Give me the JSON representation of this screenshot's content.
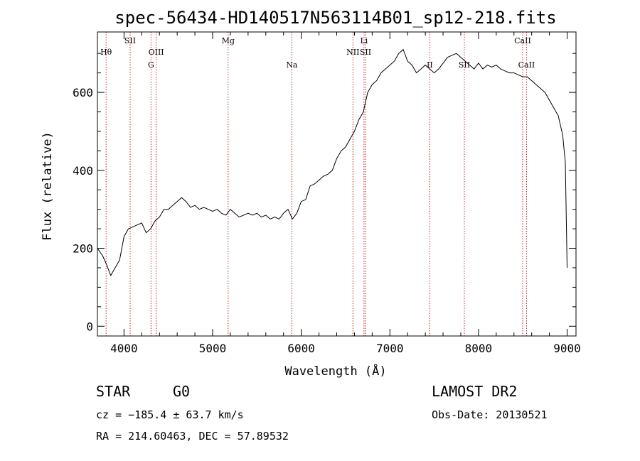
{
  "chart_data": {
    "type": "line",
    "title": "spec-56434-HD140517N563114B01_sp12-218.fits",
    "xlabel": "Wavelength (Å)",
    "ylabel": "Flux (relative)",
    "xlim": [
      3700,
      9100
    ],
    "ylim": [
      -25,
      755
    ],
    "x_ticks": [
      4000,
      5000,
      6000,
      7000,
      8000,
      9000
    ],
    "y_ticks": [
      0,
      200,
      400,
      600
    ],
    "grid": false,
    "series": [
      {
        "x": [
          3700,
          3760,
          3800,
          3850,
          3900,
          3950,
          4000,
          4050,
          4100,
          4150,
          4200,
          4250,
          4300,
          4350,
          4400,
          4450,
          4500,
          4550,
          4600,
          4650,
          4700,
          4750,
          4800,
          4850,
          4900,
          4950,
          5000,
          5050,
          5100,
          5150,
          5200,
          5250,
          5300,
          5350,
          5400,
          5450,
          5500,
          5550,
          5600,
          5650,
          5700,
          5750,
          5800,
          5850,
          5900,
          5950,
          6000,
          6050,
          6100,
          6150,
          6200,
          6250,
          6300,
          6350,
          6400,
          6450,
          6500,
          6550,
          6600,
          6650,
          6700,
          6750,
          6800,
          6850,
          6900,
          6950,
          7000,
          7050,
          7100,
          7150,
          7200,
          7250,
          7300,
          7350,
          7400,
          7450,
          7500,
          7550,
          7600,
          7650,
          7700,
          7750,
          7800,
          7850,
          7900,
          7950,
          8000,
          8050,
          8100,
          8150,
          8200,
          8250,
          8300,
          8350,
          8400,
          8450,
          8500,
          8550,
          8600,
          8650,
          8700,
          8750,
          8800,
          8850,
          8900,
          8950,
          8980,
          9000
        ],
        "y": [
          200,
          180,
          160,
          130,
          150,
          170,
          230,
          250,
          255,
          260,
          265,
          240,
          250,
          270,
          280,
          300,
          300,
          310,
          320,
          330,
          320,
          305,
          310,
          300,
          305,
          300,
          295,
          300,
          290,
          285,
          300,
          290,
          280,
          285,
          290,
          285,
          290,
          280,
          285,
          275,
          280,
          275,
          290,
          300,
          275,
          290,
          320,
          325,
          360,
          365,
          375,
          385,
          390,
          400,
          430,
          450,
          460,
          480,
          500,
          530,
          550,
          600,
          620,
          630,
          650,
          660,
          670,
          680,
          700,
          710,
          680,
          670,
          650,
          660,
          670,
          660,
          650,
          660,
          675,
          690,
          695,
          700,
          690,
          680,
          670,
          660,
          675,
          660,
          670,
          665,
          670,
          660,
          655,
          650,
          650,
          645,
          640,
          640,
          630,
          620,
          610,
          600,
          580,
          560,
          540,
          490,
          420,
          150
        ]
      }
    ],
    "annotations": [
      {
        "label": "Hθ",
        "wavelength": 3798,
        "row": "upper"
      },
      {
        "label": "SII",
        "wavelength": 4069,
        "row": "top"
      },
      {
        "label": "OIII",
        "wavelength": 4363,
        "row": "upper"
      },
      {
        "label": "G",
        "wavelength": 4305,
        "row": "lower"
      },
      {
        "label": "Mg",
        "wavelength": 5175,
        "row": "top"
      },
      {
        "label": "Na",
        "wavelength": 5893,
        "row": "lower"
      },
      {
        "label": "Li",
        "wavelength": 6708,
        "row": "top"
      },
      {
        "label": "NII",
        "wavelength": 6583,
        "row": "upper"
      },
      {
        "label": "SII",
        "wavelength": 6725,
        "row": "upper"
      },
      {
        "label": "II",
        "wavelength": 7450,
        "row": "lower"
      },
      {
        "label": "SII",
        "wavelength": 7840,
        "row": "lower"
      },
      {
        "label": "CaII",
        "wavelength": 8498,
        "row": "top"
      },
      {
        "label": "CaII",
        "wavelength": 8542,
        "row": "lower"
      }
    ],
    "vlines": [
      3798,
      4069,
      4305,
      4363,
      5175,
      5893,
      6583,
      6708,
      6725,
      7450,
      7840,
      8498,
      8542
    ],
    "colors": {
      "spectrum": "#000000",
      "vlines": "#cc2222"
    }
  },
  "info": {
    "class": "STAR",
    "subclass": "G0",
    "survey": "LAMOST DR2",
    "cz": "cz = −185.4 ± 63.7 km/s",
    "obs_date": "Obs-Date: 20130521",
    "coords": "RA = 214.60463, DEC =  57.89532"
  }
}
